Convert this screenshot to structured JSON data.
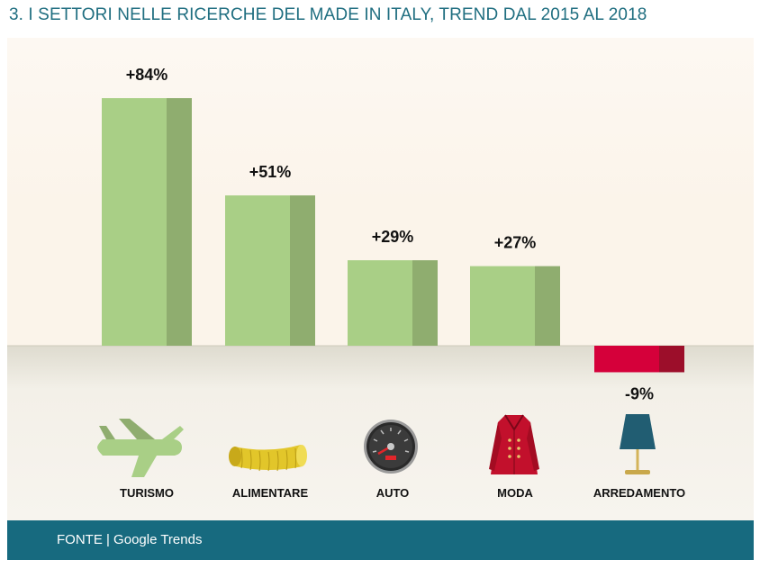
{
  "title": "3. I SETTORI NELLE RICERCHE DEL MADE IN ITALY, TREND DAL 2015 AL 2018",
  "footer": {
    "source": "FONTE | Google Trends"
  },
  "colors": {
    "positive_front": "#a9cf86",
    "positive_side": "#8fad6f",
    "negative_front": "#d5003a",
    "negative_side": "#9c0e2a",
    "panel_top": "#fdf8f2",
    "panel_bottom": "#e9e5da",
    "footer": "#176a7f"
  },
  "chart_data": {
    "type": "bar",
    "categories": [
      "TURISMO",
      "ALIMENTARE",
      "AUTO",
      "MODA",
      "ARREDAMENTO"
    ],
    "values": [
      84,
      51,
      29,
      27,
      -9
    ],
    "value_labels": [
      "+84%",
      "+51%",
      "+29%",
      "+27%",
      "-9%"
    ],
    "icons": [
      "airplane-icon",
      "pasta-icon",
      "speedometer-icon",
      "coat-icon",
      "lamp-icon"
    ],
    "ylabel": "",
    "xlabel": ""
  }
}
